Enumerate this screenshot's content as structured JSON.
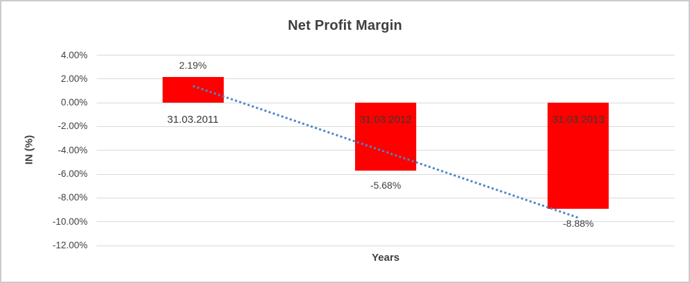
{
  "chart_data": {
    "type": "bar",
    "title": "Net Profit Margin",
    "xlabel": "Years",
    "ylabel": "IN (%)",
    "categories": [
      "31.03.2011",
      "31.03.2012",
      "31.03.2013"
    ],
    "values": [
      2.19,
      -5.68,
      -8.88
    ],
    "data_labels": [
      "2.19%",
      "-5.68%",
      "-8.88%"
    ],
    "ylim": [
      -12,
      4
    ],
    "ytick_step": 2,
    "ytick_labels": [
      "4.00%",
      "2.00%",
      "0.00%",
      "-2.00%",
      "-4.00%",
      "-6.00%",
      "-8.00%",
      "-10.00%",
      "-12.00%"
    ],
    "grid": true,
    "legend": "none",
    "bar_color": "#FF0000",
    "trendline": {
      "type": "linear",
      "style": "dotted",
      "color": "#4A86C8",
      "y_start": 1.41,
      "y_end": -9.66
    },
    "colors": {
      "text": "#3F3F3F",
      "gridline": "#D9D9D9",
      "chart_border": "#CBCBCB",
      "background": "#FFFFFF"
    }
  }
}
